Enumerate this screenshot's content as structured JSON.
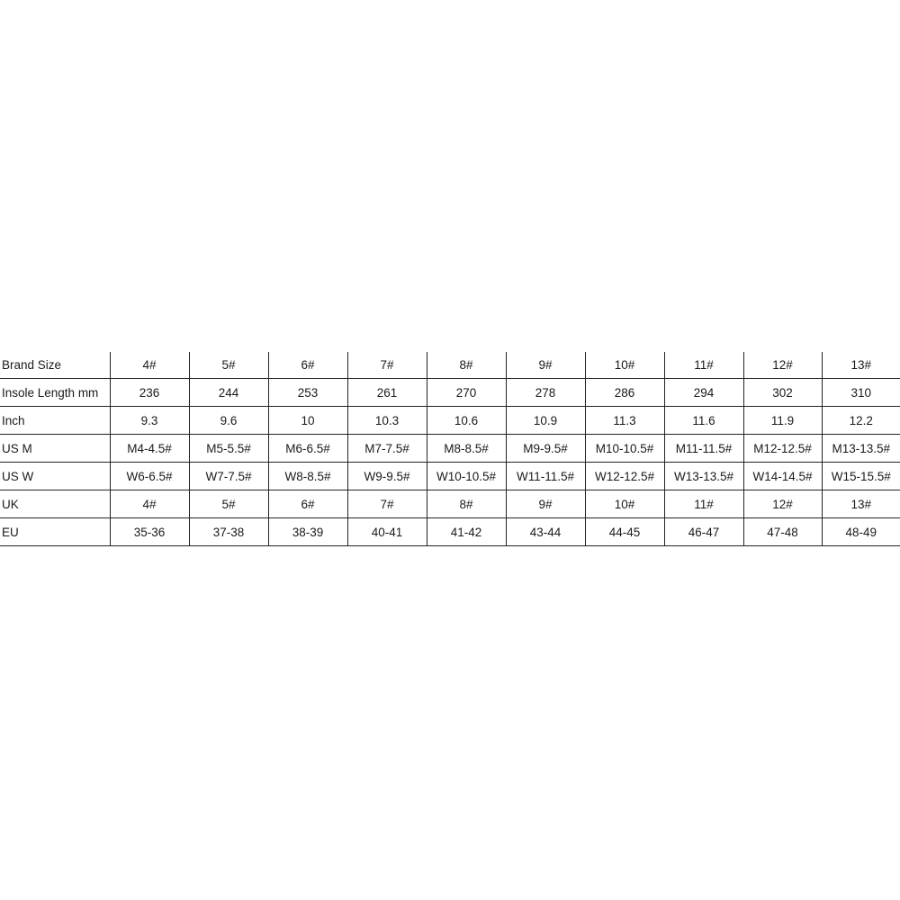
{
  "table": {
    "rows": [
      {
        "label": "Brand Size",
        "values": [
          "4#",
          "5#",
          "6#",
          "7#",
          "8#",
          "9#",
          "10#",
          "11#",
          "12#",
          "13#"
        ]
      },
      {
        "label": "Insole Length mm",
        "values": [
          "236",
          "244",
          "253",
          "261",
          "270",
          "278",
          "286",
          "294",
          "302",
          "310"
        ]
      },
      {
        "label": "Inch",
        "values": [
          "9.3",
          "9.6",
          "10",
          "10.3",
          "10.6",
          "10.9",
          "11.3",
          "11.6",
          "11.9",
          "12.2"
        ]
      },
      {
        "label": "US M",
        "values": [
          "M4-4.5#",
          "M5-5.5#",
          "M6-6.5#",
          "M7-7.5#",
          "M8-8.5#",
          "M9-9.5#",
          "M10-10.5#",
          "M11-11.5#",
          "M12-12.5#",
          "M13-13.5#"
        ]
      },
      {
        "label": "US W",
        "values": [
          "W6-6.5#",
          "W7-7.5#",
          "W8-8.5#",
          "W9-9.5#",
          "W10-10.5#",
          "W11-11.5#",
          "W12-12.5#",
          "W13-13.5#",
          "W14-14.5#",
          "W15-15.5#"
        ]
      },
      {
        "label": "UK",
        "values": [
          "4#",
          "5#",
          "6#",
          "7#",
          "8#",
          "9#",
          "10#",
          "11#",
          "12#",
          "13#"
        ]
      },
      {
        "label": "EU",
        "values": [
          "35-36",
          "37-38",
          "38-39",
          "40-41",
          "41-42",
          "43-44",
          "44-45",
          "46-47",
          "47-48",
          "48-49"
        ]
      }
    ]
  }
}
